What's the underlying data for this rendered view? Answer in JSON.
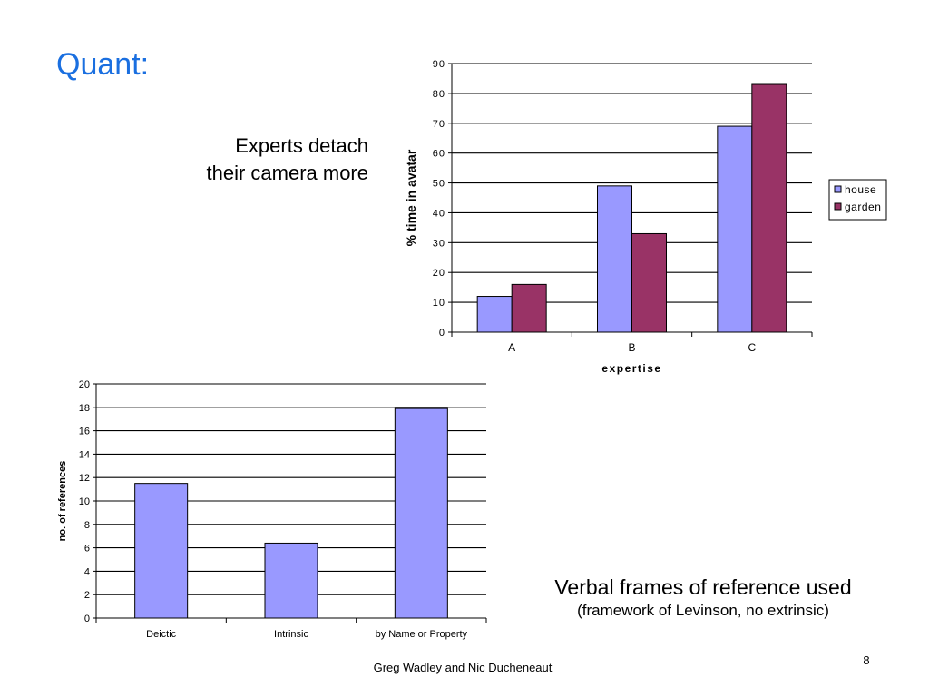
{
  "slide": {
    "title": "Quant:",
    "caption_top_line1": "Experts detach",
    "caption_top_line2": "their camera more",
    "caption_bottom_main": "Verbal frames of reference used",
    "caption_bottom_sub": "(framework of Levinson, no extrinsic)",
    "footer": "Greg Wadley and Nic Ducheneaut",
    "page_number": "8"
  },
  "colors": {
    "title": "#1a6fe0",
    "house": "#9999ff",
    "garden": "#993366"
  },
  "chart_data": [
    {
      "type": "bar",
      "title": "",
      "categories": [
        "A",
        "B",
        "C"
      ],
      "series": [
        {
          "name": "house",
          "values": [
            12,
            49,
            69
          ],
          "color": "#9999ff"
        },
        {
          "name": "garden",
          "values": [
            16,
            33,
            83
          ],
          "color": "#993366"
        }
      ],
      "xlabel": "expertise",
      "ylabel": "% time in avatar",
      "ylim": [
        0,
        90
      ],
      "yticks": [
        "0",
        "10",
        "20",
        "30",
        "40",
        "50",
        "60",
        "70",
        "80",
        "90"
      ],
      "grid": true,
      "legend": "right"
    },
    {
      "type": "bar",
      "title": "",
      "categories": [
        "Deictic",
        "Intrinsic",
        "by Name or Property"
      ],
      "series": [
        {
          "values": [
            11.5,
            6.4,
            17.9
          ],
          "color": "#9999ff"
        }
      ],
      "xlabel": "",
      "ylabel": "no. of references",
      "ylim": [
        0,
        20
      ],
      "yticks": [
        "0",
        "2",
        "4",
        "6",
        "8",
        "10",
        "12",
        "14",
        "16",
        "18",
        "20"
      ],
      "grid": true,
      "legend": "none"
    }
  ]
}
